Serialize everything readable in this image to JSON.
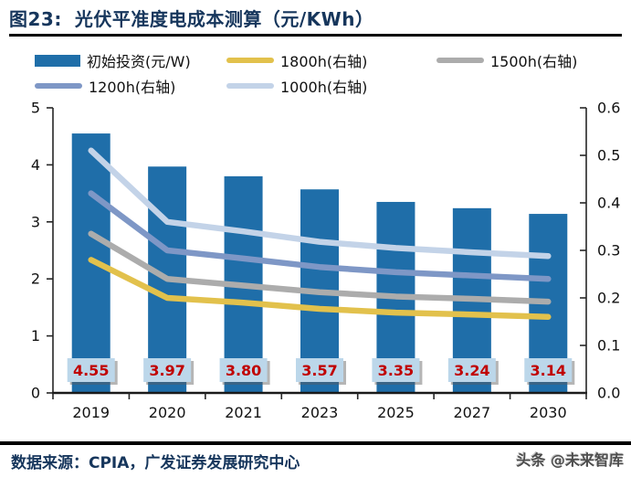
{
  "header": {
    "tag": "图23:",
    "title": "光伏平准度电成本测算（元/KWh）"
  },
  "legend": [
    {
      "label": "初始投资(元/W)",
      "type": "bar",
      "color": "#1f6ea9"
    },
    {
      "label": "1800h(右轴)",
      "type": "line",
      "color": "#e2c14c"
    },
    {
      "label": "1500h(右轴)",
      "type": "line",
      "color": "#acacac"
    },
    {
      "label": "1200h(右轴)",
      "type": "line",
      "color": "#7e97c6"
    },
    {
      "label": "1000h(右轴)",
      "type": "line",
      "color": "#c3d3e8"
    }
  ],
  "chart_data": {
    "type": "bar+line",
    "title": "光伏平准度电成本测算（元/KWh）",
    "categories": [
      "2019",
      "2020",
      "2021",
      "2023",
      "2025",
      "2027",
      "2030"
    ],
    "bar_series": {
      "name": "初始投资(元/W)",
      "axis": "left",
      "color": "#1f6ea9",
      "values": [
        4.55,
        3.97,
        3.8,
        3.57,
        3.35,
        3.24,
        3.14
      ]
    },
    "bar_labels": [
      "4.55",
      "3.97",
      "3.80",
      "3.57",
      "3.35",
      "3.24",
      "3.14"
    ],
    "bar_label_style": {
      "text_color": "#c00000",
      "box_color": "#bcd7ea"
    },
    "line_series": [
      {
        "name": "1000h(右轴)",
        "axis": "right",
        "color": "#c3d3e8",
        "values": [
          0.51,
          0.36,
          0.34,
          0.318,
          0.305,
          0.296,
          0.288
        ]
      },
      {
        "name": "1200h(右轴)",
        "axis": "right",
        "color": "#7e97c6",
        "values": [
          0.42,
          0.3,
          0.283,
          0.265,
          0.254,
          0.247,
          0.24
        ]
      },
      {
        "name": "1500h(右轴)",
        "axis": "right",
        "color": "#acacac",
        "values": [
          0.335,
          0.24,
          0.226,
          0.212,
          0.203,
          0.198,
          0.192
        ]
      },
      {
        "name": "1800h(右轴)",
        "axis": "right",
        "color": "#e2c14c",
        "values": [
          0.28,
          0.2,
          0.19,
          0.177,
          0.169,
          0.165,
          0.16
        ]
      }
    ],
    "left_axis": {
      "min": 0,
      "max": 5,
      "tick_labels": [
        "0",
        "1",
        "2",
        "3",
        "4",
        "5"
      ]
    },
    "right_axis": {
      "min": 0,
      "max": 0.6,
      "tick_labels": [
        "0.0",
        "0.1",
        "0.2",
        "0.3",
        "0.4",
        "0.5",
        "0.6"
      ]
    },
    "grid": false,
    "legend_position": "top"
  },
  "footer": {
    "source": "数据来源：CPIA，广发证券发展研究中心",
    "watermark": "头条 @未来智库"
  }
}
